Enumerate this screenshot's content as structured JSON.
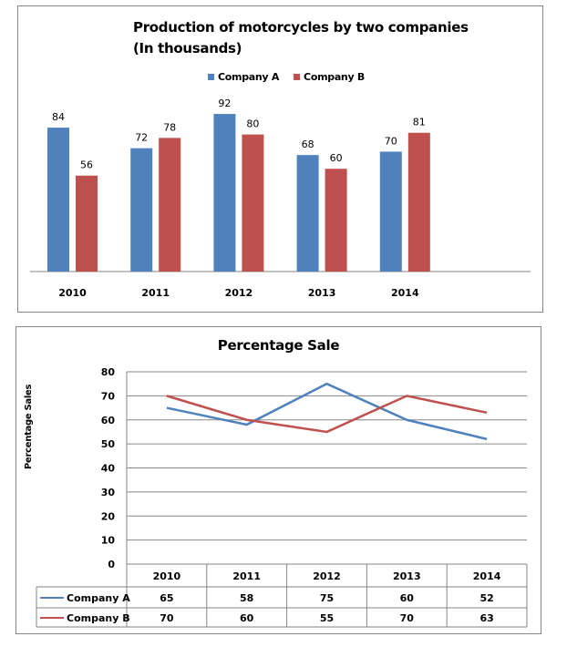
{
  "colors": {
    "company_a": "#4f81bd",
    "company_b": "#c0504d",
    "grid": "#868686"
  },
  "chart_data": [
    {
      "type": "bar",
      "title": "Production of motorcycles by two companies",
      "subtitle": "(In thousands)",
      "categories": [
        "2010",
        "2011",
        "2012",
        "2013",
        "2014"
      ],
      "series": [
        {
          "name": "Company A",
          "values": [
            84,
            72,
            92,
            68,
            70
          ]
        },
        {
          "name": "Company B",
          "values": [
            56,
            78,
            80,
            60,
            81
          ]
        }
      ],
      "legend": "top",
      "ylim": [
        0,
        100
      ],
      "grid": false,
      "data_labels": true
    },
    {
      "type": "line",
      "title": "Percentage Sale",
      "ylabel": "Percentage Sales",
      "categories": [
        "2010",
        "2011",
        "2012",
        "2013",
        "2014"
      ],
      "yticks": [
        "0",
        "10",
        "20",
        "30",
        "40",
        "50",
        "60",
        "70",
        "80"
      ],
      "ylim": [
        0,
        80
      ],
      "grid": true,
      "series": [
        {
          "name": "Company A",
          "values": [
            65,
            58,
            75,
            60,
            52
          ]
        },
        {
          "name": "Company B",
          "values": [
            70,
            60,
            55,
            70,
            63
          ]
        }
      ],
      "legend": "data-table"
    }
  ]
}
